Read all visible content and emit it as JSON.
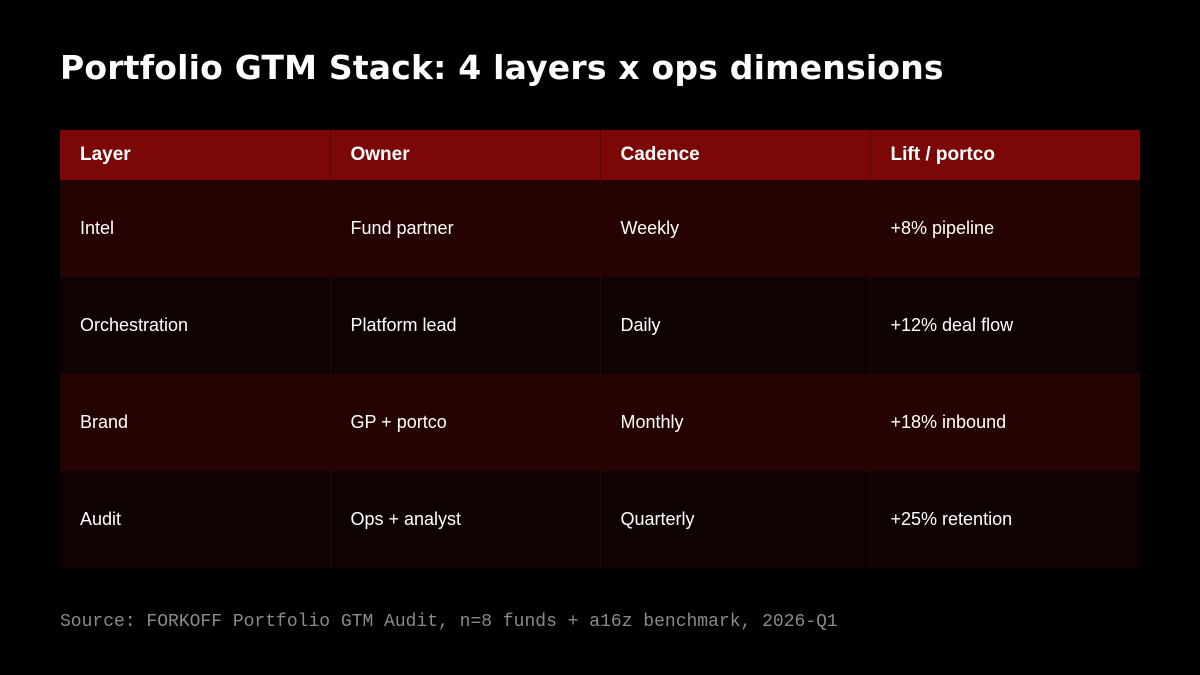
{
  "slide": {
    "title": "Portfolio GTM Stack: 4 layers x ops dimensions",
    "source": "Source: FORKOFF Portfolio GTM Audit, n=8 funds + a16z benchmark, 2026-Q1"
  },
  "table": {
    "headers": [
      "Layer",
      "Owner",
      "Cadence",
      "Lift / portco"
    ],
    "rows": [
      [
        "Intel",
        "Fund partner",
        "Weekly",
        "+8% pipeline"
      ],
      [
        "Orchestration",
        "Platform lead",
        "Daily",
        "+12% deal flow"
      ],
      [
        "Brand",
        "GP + portco",
        "Monthly",
        "+18% inbound"
      ],
      [
        "Audit",
        "Ops + analyst",
        "Quarterly",
        "+25% retention"
      ]
    ]
  },
  "colors": {
    "background": "#000000",
    "header_fill": "#7c0707",
    "row_odd_fill": "#260303",
    "row_even_fill": "#0f0202",
    "source_text": "#8a8a8a"
  }
}
